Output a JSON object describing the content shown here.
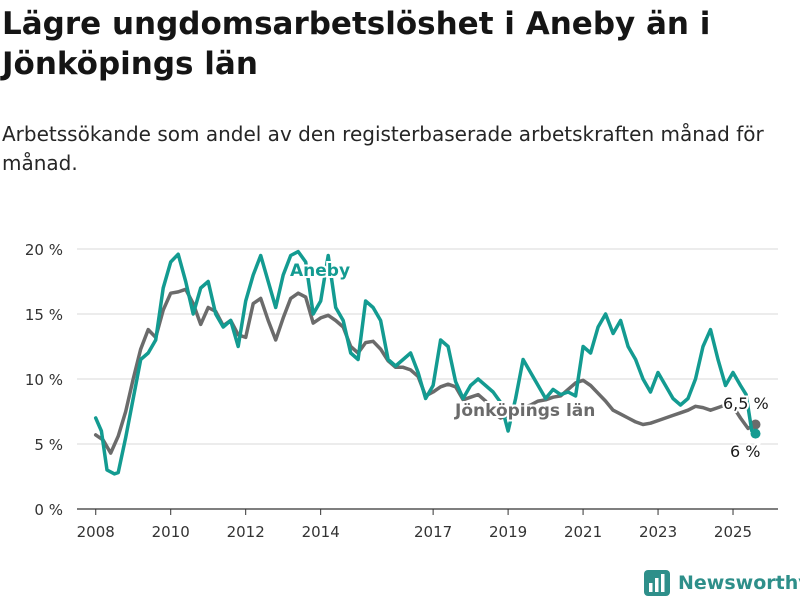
{
  "header": {
    "title": "Lägre ungdomsarbetslöshet i Aneby än i Jönköpings län",
    "subtitle": "Arbetssökande som andel av den registerbaserade arbetskraften månad för månad."
  },
  "brand": {
    "name": "Newsworthy",
    "icon": "bar-chart-logo-icon"
  },
  "colors": {
    "aneby": "#139b91",
    "lan": "#6b6b6b",
    "grid": "#d9d9d9",
    "axis": "#333333"
  },
  "chart_data": {
    "type": "line",
    "ylim": [
      0,
      20
    ],
    "xlim": [
      2007.5,
      2026.2
    ],
    "y_ticks": [
      {
        "value": 0,
        "label": "0 %"
      },
      {
        "value": 5,
        "label": "5 %"
      },
      {
        "value": 10,
        "label": "10 %"
      },
      {
        "value": 15,
        "label": "15 %"
      },
      {
        "value": 20,
        "label": "20 %"
      }
    ],
    "x_ticks": [
      {
        "value": 2008,
        "label": "2008"
      },
      {
        "value": 2010,
        "label": "2010"
      },
      {
        "value": 2012,
        "label": "2012"
      },
      {
        "value": 2014,
        "label": "2014"
      },
      {
        "value": 2017,
        "label": "2017"
      },
      {
        "value": 2019,
        "label": "2019"
      },
      {
        "value": 2021,
        "label": "2021"
      },
      {
        "value": 2023,
        "label": "2023"
      },
      {
        "value": 2025,
        "label": "2025"
      }
    ],
    "grid": true,
    "series": [
      {
        "name": "Jönköpings län",
        "color_key": "lan",
        "end_label": "6,5 %",
        "points": [
          [
            2008.0,
            5.7
          ],
          [
            2008.2,
            5.3
          ],
          [
            2008.4,
            4.3
          ],
          [
            2008.6,
            5.6
          ],
          [
            2008.8,
            7.5
          ],
          [
            2009.0,
            10.0
          ],
          [
            2009.2,
            12.3
          ],
          [
            2009.4,
            13.8
          ],
          [
            2009.6,
            13.2
          ],
          [
            2009.8,
            15.3
          ],
          [
            2010.0,
            16.6
          ],
          [
            2010.2,
            16.7
          ],
          [
            2010.4,
            16.9
          ],
          [
            2010.6,
            15.8
          ],
          [
            2010.8,
            14.2
          ],
          [
            2011.0,
            15.5
          ],
          [
            2011.2,
            15.2
          ],
          [
            2011.4,
            14.1
          ],
          [
            2011.6,
            14.5
          ],
          [
            2011.8,
            13.4
          ],
          [
            2012.0,
            13.2
          ],
          [
            2012.2,
            15.8
          ],
          [
            2012.4,
            16.2
          ],
          [
            2012.6,
            14.5
          ],
          [
            2012.8,
            13.0
          ],
          [
            2013.0,
            14.7
          ],
          [
            2013.2,
            16.2
          ],
          [
            2013.4,
            16.6
          ],
          [
            2013.6,
            16.3
          ],
          [
            2013.8,
            14.3
          ],
          [
            2014.0,
            14.7
          ],
          [
            2014.2,
            14.9
          ],
          [
            2014.4,
            14.5
          ],
          [
            2014.6,
            14.0
          ],
          [
            2014.8,
            12.5
          ],
          [
            2015.0,
            12.0
          ],
          [
            2015.2,
            12.8
          ],
          [
            2015.4,
            12.9
          ],
          [
            2015.6,
            12.3
          ],
          [
            2015.8,
            11.4
          ],
          [
            2016.0,
            10.9
          ],
          [
            2016.2,
            10.9
          ],
          [
            2016.4,
            10.7
          ],
          [
            2016.6,
            10.2
          ],
          [
            2016.8,
            8.7
          ],
          [
            2017.0,
            9.0
          ],
          [
            2017.2,
            9.4
          ],
          [
            2017.4,
            9.6
          ],
          [
            2017.6,
            9.4
          ],
          [
            2017.8,
            8.4
          ],
          [
            2018.0,
            8.6
          ],
          [
            2018.2,
            8.8
          ],
          [
            2018.4,
            8.3
          ],
          [
            2018.6,
            7.4
          ],
          [
            2018.8,
            7.0
          ],
          [
            2019.0,
            7.2
          ],
          [
            2019.2,
            7.4
          ],
          [
            2019.4,
            7.8
          ],
          [
            2019.6,
            8.0
          ],
          [
            2019.8,
            8.3
          ],
          [
            2020.0,
            8.4
          ],
          [
            2020.2,
            8.6
          ],
          [
            2020.4,
            8.7
          ],
          [
            2020.6,
            9.2
          ],
          [
            2020.8,
            9.7
          ],
          [
            2021.0,
            9.9
          ],
          [
            2021.2,
            9.5
          ],
          [
            2021.4,
            8.9
          ],
          [
            2021.6,
            8.3
          ],
          [
            2021.8,
            7.6
          ],
          [
            2022.0,
            7.3
          ],
          [
            2022.2,
            7.0
          ],
          [
            2022.4,
            6.7
          ],
          [
            2022.6,
            6.5
          ],
          [
            2022.8,
            6.6
          ],
          [
            2023.0,
            6.8
          ],
          [
            2023.2,
            7.0
          ],
          [
            2023.4,
            7.2
          ],
          [
            2023.6,
            7.4
          ],
          [
            2023.8,
            7.6
          ],
          [
            2024.0,
            7.9
          ],
          [
            2024.2,
            7.8
          ],
          [
            2024.4,
            7.6
          ],
          [
            2024.6,
            7.8
          ],
          [
            2024.8,
            8.0
          ],
          [
            2025.0,
            7.9
          ],
          [
            2025.2,
            7.0
          ],
          [
            2025.4,
            6.2
          ],
          [
            2025.6,
            6.5
          ]
        ]
      },
      {
        "name": "Aneby",
        "color_key": "aneby",
        "end_label": "6 %",
        "points": [
          [
            2008.0,
            7.0
          ],
          [
            2008.15,
            6.0
          ],
          [
            2008.3,
            3.0
          ],
          [
            2008.5,
            2.7
          ],
          [
            2008.6,
            2.8
          ],
          [
            2008.8,
            5.5
          ],
          [
            2009.0,
            8.5
          ],
          [
            2009.2,
            11.5
          ],
          [
            2009.4,
            12.0
          ],
          [
            2009.6,
            13.0
          ],
          [
            2009.8,
            17.0
          ],
          [
            2010.0,
            19.0
          ],
          [
            2010.2,
            19.6
          ],
          [
            2010.4,
            17.5
          ],
          [
            2010.6,
            15.0
          ],
          [
            2010.8,
            17.0
          ],
          [
            2011.0,
            17.5
          ],
          [
            2011.2,
            15.0
          ],
          [
            2011.4,
            14.0
          ],
          [
            2011.6,
            14.5
          ],
          [
            2011.8,
            12.5
          ],
          [
            2012.0,
            16.0
          ],
          [
            2012.2,
            18.0
          ],
          [
            2012.4,
            19.5
          ],
          [
            2012.6,
            17.5
          ],
          [
            2012.8,
            15.5
          ],
          [
            2013.0,
            18.0
          ],
          [
            2013.2,
            19.5
          ],
          [
            2013.4,
            19.8
          ],
          [
            2013.6,
            19.0
          ],
          [
            2013.8,
            15.0
          ],
          [
            2014.0,
            16.0
          ],
          [
            2014.2,
            19.5
          ],
          [
            2014.4,
            15.5
          ],
          [
            2014.6,
            14.5
          ],
          [
            2014.8,
            12.0
          ],
          [
            2015.0,
            11.5
          ],
          [
            2015.2,
            16.0
          ],
          [
            2015.4,
            15.5
          ],
          [
            2015.6,
            14.5
          ],
          [
            2015.8,
            11.5
          ],
          [
            2016.0,
            11.0
          ],
          [
            2016.2,
            11.5
          ],
          [
            2016.4,
            12.0
          ],
          [
            2016.6,
            10.5
          ],
          [
            2016.8,
            8.5
          ],
          [
            2017.0,
            9.5
          ],
          [
            2017.2,
            13.0
          ],
          [
            2017.4,
            12.5
          ],
          [
            2017.6,
            9.8
          ],
          [
            2017.8,
            8.5
          ],
          [
            2018.0,
            9.5
          ],
          [
            2018.2,
            10.0
          ],
          [
            2018.4,
            9.5
          ],
          [
            2018.6,
            9.0
          ],
          [
            2018.8,
            8.2
          ],
          [
            2019.0,
            6.0
          ],
          [
            2019.2,
            8.5
          ],
          [
            2019.4,
            11.5
          ],
          [
            2019.6,
            10.5
          ],
          [
            2019.8,
            9.5
          ],
          [
            2020.0,
            8.5
          ],
          [
            2020.2,
            9.2
          ],
          [
            2020.4,
            8.8
          ],
          [
            2020.6,
            9.0
          ],
          [
            2020.8,
            8.7
          ],
          [
            2021.0,
            12.5
          ],
          [
            2021.2,
            12.0
          ],
          [
            2021.4,
            14.0
          ],
          [
            2021.6,
            15.0
          ],
          [
            2021.8,
            13.5
          ],
          [
            2022.0,
            14.5
          ],
          [
            2022.2,
            12.5
          ],
          [
            2022.4,
            11.5
          ],
          [
            2022.6,
            10.0
          ],
          [
            2022.8,
            9.0
          ],
          [
            2023.0,
            10.5
          ],
          [
            2023.2,
            9.5
          ],
          [
            2023.4,
            8.5
          ],
          [
            2023.6,
            8.0
          ],
          [
            2023.8,
            8.5
          ],
          [
            2024.0,
            10.0
          ],
          [
            2024.2,
            12.5
          ],
          [
            2024.4,
            13.8
          ],
          [
            2024.6,
            11.5
          ],
          [
            2024.8,
            9.5
          ],
          [
            2025.0,
            10.5
          ],
          [
            2025.2,
            9.5
          ],
          [
            2025.35,
            8.8
          ],
          [
            2025.5,
            6.0
          ],
          [
            2025.6,
            5.8
          ]
        ]
      }
    ]
  }
}
